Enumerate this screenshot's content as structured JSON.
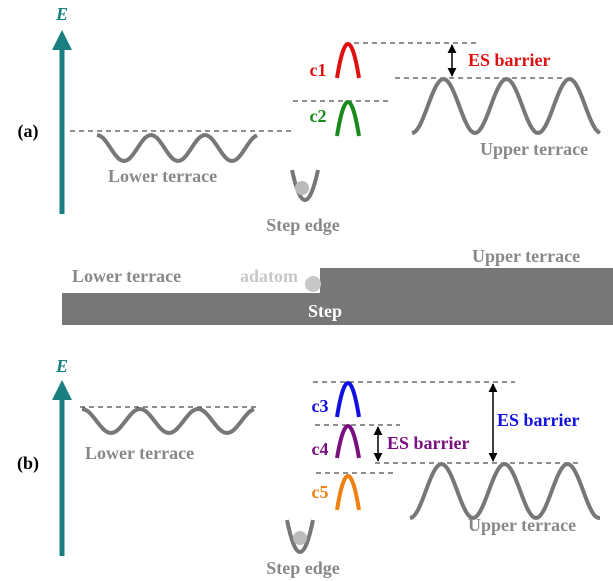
{
  "panel_a": {
    "label": "(a)",
    "axis_label": "E",
    "c1": "c1",
    "c2": "c2",
    "barrier": "ES barrier",
    "upper": "Upper terrace",
    "lower": "Lower terrace",
    "step_edge": "Step edge"
  },
  "step_schematic": {
    "lower": "Lower terrace",
    "adatom": "adatom",
    "upper": "Upper terrace",
    "step": "Step"
  },
  "panel_b": {
    "label": "(b)",
    "axis_label": "E",
    "c3": "c3",
    "c4": "c4",
    "c5": "c5",
    "barrier_small": "ES barrier",
    "barrier_large": "ES barrier",
    "lower": "Lower terrace",
    "upper": "Upper terrace",
    "step_edge": "Step edge"
  }
}
